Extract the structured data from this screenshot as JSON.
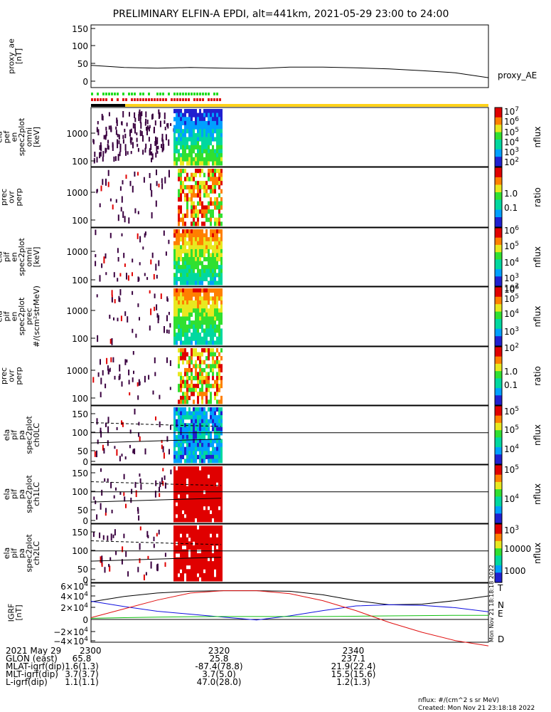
{
  "title": "PRELIMINARY ELFIN-A EPDI, alt=441km, 2021-05-29 23:00 to 24:00",
  "panels": [
    {
      "id": "proxy_ae",
      "ylabel": [
        "proxy_ae",
        "[nT]"
      ],
      "yticks": [
        "150",
        "100",
        "50",
        "0"
      ],
      "right_label": "proxy_AE"
    },
    {
      "id": "pef_omni",
      "ylabel": [
        "ela",
        "pef",
        "en",
        "spec2plot",
        "omni",
        "[keV]"
      ],
      "yticks": [
        "1000",
        "100"
      ],
      "colorbar": {
        "ticks": [
          "10^7",
          "10^6",
          "10^5",
          "10^4",
          "10^3",
          "10^2"
        ],
        "label": "nflux"
      }
    },
    {
      "id": "pef_ratio",
      "ylabel": [
        "prec",
        "ovr",
        "perp"
      ],
      "yticks": [
        "1000",
        "100"
      ],
      "colorbar": {
        "ticks": [
          "1.0",
          "0.1"
        ],
        "label": "ratio"
      }
    },
    {
      "id": "pif_omni",
      "ylabel": [
        "ela",
        "pif",
        "en",
        "spec2plot",
        "omni",
        "[keV]"
      ],
      "yticks": [
        "1000",
        "100"
      ],
      "colorbar": {
        "ticks": [
          "10^6",
          "10^5",
          "10^4",
          "10^3",
          "10^2"
        ],
        "label": "nflux"
      }
    },
    {
      "id": "pif_prec",
      "ylabel": [
        "ela",
        "pif",
        "en",
        "spec2plot",
        "prec",
        "#/(scm²strMeV)"
      ],
      "yticks": [
        "1000",
        "100"
      ],
      "colorbar": {
        "ticks": [
          "10^6",
          "10^5",
          "10^4",
          "10^3",
          "10^2"
        ],
        "label": "nflux"
      }
    },
    {
      "id": "pif_ratio",
      "ylabel": [
        "prec",
        "ovr",
        "perp"
      ],
      "yticks": [
        "1000",
        "100"
      ],
      "colorbar": {
        "ticks": [
          "1.0",
          "0.1"
        ],
        "label": "ratio"
      }
    },
    {
      "id": "ch0",
      "ylabel": [
        "ela",
        "pif",
        "pa",
        "spec2plot",
        "ch0LC"
      ],
      "yticks": [
        "150",
        "100",
        "50",
        "0"
      ],
      "colorbar": {
        "ticks": [
          "10^5",
          "10^5",
          "10^4"
        ],
        "label": "nflux"
      }
    },
    {
      "id": "ch1",
      "ylabel": [
        "ela",
        "pif",
        "pa",
        "spec2plot",
        "ch1LC"
      ],
      "yticks": [
        "150",
        "100",
        "50",
        "0"
      ],
      "colorbar": {
        "ticks": [
          "10^5",
          "10^4",
          "10^3"
        ],
        "label": "nflux"
      }
    },
    {
      "id": "ch2",
      "ylabel": [
        "ela",
        "pif",
        "pa",
        "spec2plot",
        "ch2LC"
      ],
      "yticks": [
        "150",
        "100",
        "50",
        "0"
      ],
      "colorbar": {
        "ticks": [
          "10000",
          "1000"
        ],
        "label": "nflux"
      }
    },
    {
      "id": "igrf",
      "ylabel": [
        "IGRF",
        "[nT]"
      ],
      "yticks": [
        "6×10^4",
        "4×10^4",
        "2×10^4",
        "0",
        "−2×10^4",
        "−4×10^4"
      ],
      "comp_labels": [
        "T",
        "N",
        "E",
        "D"
      ],
      "comp_colors": [
        "#000000",
        "#1010e0",
        "#10c010",
        "#e01010"
      ]
    }
  ],
  "stamp": "Mon Nov 21 18:18:18 2022",
  "ephemeris": {
    "rows": [
      {
        "label": "2021 May 29",
        "v0": "2300",
        "v1": "2320",
        "v2": "2340"
      },
      {
        "label": "GLON (east)",
        "v0": "65.8",
        "v1": "25.8",
        "v2": "237.1"
      },
      {
        "label": "MLAT-igrf(dip)",
        "v0": "1.6(1.3)",
        "v1": "-87.4(78.8)",
        "v2": "21.9(22.4)"
      },
      {
        "label": "MLT-igrf(dip)",
        "v0": "3.7(3.7)",
        "v1": "3.7(5.0)",
        "v2": "15.5(15.6)"
      },
      {
        "label": "L-igrf(dip)",
        "v0": "1.1(1.1)",
        "v1": "47.0(28.0)",
        "v2": "1.2(1.3)"
      }
    ]
  },
  "footer": {
    "units": "nflux: #/(cm^2 s sr MeV)",
    "created": "Created: Mon Nov 21 23:18:18 2022"
  },
  "chart_data": {
    "type": "line",
    "title": "PRELIMINARY ELFIN-A EPDI, alt=441km, 2021-05-29 23:00 to 24:00",
    "x_range": [
      "23:00",
      "24:00"
    ],
    "x_ticks": [
      "2300",
      "2320",
      "2340"
    ],
    "proxy_ae": {
      "ylabel": "proxy_ae [nT]",
      "ylim": [
        0,
        150
      ],
      "series_name": "proxy_AE",
      "x_min": [
        0,
        5,
        10,
        15,
        20,
        25,
        30,
        35,
        40,
        45,
        50,
        55,
        60
      ],
      "values": [
        45,
        39,
        37,
        39,
        37,
        36,
        40,
        40,
        38,
        35,
        30,
        24,
        10
      ]
    },
    "spectrograms": {
      "active_interval_min": [
        12.5,
        19.5
      ],
      "energy_range_keV": [
        60,
        6000
      ],
      "pitch_angle_range_deg": [
        0,
        180
      ]
    },
    "igrf": {
      "ylabel": "IGRF [nT]",
      "ylim": [
        -45000,
        60000
      ],
      "x_min": [
        0,
        5,
        10,
        15,
        20,
        25,
        30,
        35,
        40,
        45,
        50,
        55,
        60
      ],
      "series": [
        {
          "name": "T",
          "values": [
            30000,
            39000,
            45000,
            48000,
            49000,
            49000,
            48000,
            42000,
            32000,
            25000,
            26000,
            32000,
            40000
          ]
        },
        {
          "name": "N",
          "values": [
            31000,
            22000,
            14000,
            9000,
            4000,
            -1000,
            6000,
            15000,
            23000,
            25000,
            24000,
            20000,
            13000
          ]
        },
        {
          "name": "E",
          "values": [
            2000,
            3000,
            4000,
            4500,
            5000,
            5000,
            5000,
            5000,
            5500,
            6000,
            6500,
            7000,
            7000
          ]
        },
        {
          "name": "D",
          "values": [
            3000,
            18000,
            33000,
            45000,
            49000,
            49000,
            44000,
            32000,
            15000,
            -5000,
            -22000,
            -36000,
            -45000
          ]
        }
      ]
    }
  }
}
